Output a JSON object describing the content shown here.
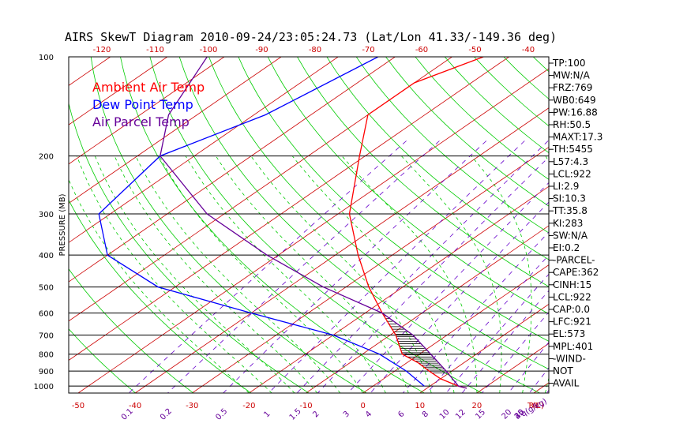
{
  "chart_data": {
    "type": "line",
    "title": "AIRS SkewT Diagram 2010-09-24/23:05:24.73 (Lat/Lon 41.33/-149.36 deg)",
    "ylabel": "PRESSURE (MB)",
    "y_scale": "log",
    "ylim": [
      1050,
      100
    ],
    "y_ticks": [
      100,
      200,
      300,
      400,
      500,
      600,
      700,
      800,
      900,
      1000
    ],
    "x_bottom_ticks": [
      -50,
      -40,
      -30,
      -20,
      -10,
      0,
      10,
      20,
      30
    ],
    "x_bottom_unit": "T(C)",
    "x_top_ticks": [
      -120,
      -110,
      -100,
      -90,
      -80,
      -70,
      -60,
      -50,
      -40
    ],
    "mixing_ratio_ticks": [
      "0.1",
      "0.2",
      "0.5",
      "1",
      "1.5",
      "2",
      "3",
      "4",
      "6",
      "8",
      "10",
      "12",
      "15",
      "20",
      "25",
      "30",
      "40"
    ],
    "mixing_ratio_unit": "q(g/kg)",
    "legend": [
      "Ambient Air Temp",
      "Dew Point Temp",
      "Air Parcel Temp"
    ],
    "series": [
      {
        "name": "Ambient Air Temp",
        "color": "#ff0000",
        "points": [
          [
            100,
            -64.5
          ],
          [
            120,
            -70
          ],
          [
            150,
            -70
          ],
          [
            200,
            -61
          ],
          [
            300,
            -48
          ],
          [
            400,
            -36
          ],
          [
            500,
            -26
          ],
          [
            600,
            -17
          ],
          [
            700,
            -9
          ],
          [
            800,
            -3
          ],
          [
            850,
            2
          ],
          [
            900,
            6
          ],
          [
            950,
            10
          ],
          [
            1000,
            15
          ],
          [
            1015,
            17
          ]
        ]
      },
      {
        "name": "Dew Point Temp",
        "color": "#0000ff",
        "points": [
          [
            100,
            -83
          ],
          [
            150,
            -88
          ],
          [
            200,
            -96
          ],
          [
            300,
            -92
          ],
          [
            400,
            -80
          ],
          [
            500,
            -63
          ],
          [
            600,
            -40
          ],
          [
            700,
            -20
          ],
          [
            800,
            -7
          ],
          [
            900,
            2
          ],
          [
            1000,
            9
          ]
        ]
      },
      {
        "name": "Air Parcel Temp",
        "color": "#660099",
        "points": [
          [
            100,
            -113
          ],
          [
            150,
            -105
          ],
          [
            200,
            -96
          ],
          [
            300,
            -73
          ],
          [
            400,
            -52
          ],
          [
            500,
            -34
          ],
          [
            600,
            -17
          ],
          [
            700,
            -6
          ],
          [
            800,
            2
          ],
          [
            900,
            9
          ],
          [
            1000,
            15
          ],
          [
            1015,
            17
          ]
        ]
      }
    ],
    "indices": [
      "TP:100",
      "MW:N/A",
      "FRZ:769",
      "WB0:649",
      "PW:16.88",
      "RH:50.5",
      "MAXT:17.3",
      "TH:5455",
      "L57:4.3",
      "LCL:922",
      "LI:2.9",
      "SI:10.3",
      "TT:35.8",
      "KI:283",
      "SW:N/A",
      "EI:0.2",
      "-PARCEL-",
      "CAPE:362",
      "CINH:15",
      "LCL:922",
      "CAP:0.0",
      "LFC:921",
      "EL:573",
      "MPL:401",
      "-WIND-",
      "NOT",
      "AVAIL"
    ],
    "colors": {
      "isotherm": "#cc0000",
      "dry_adiabat": "#00cc00",
      "moist_adiabat": "#00cc00",
      "mixing_ratio": "#6600cc",
      "isobar": "#000000",
      "top_axis": "#cc0000",
      "bottom_axis": "#cc0000",
      "mixing_axis": "#660099",
      "left_axis": "#000000"
    }
  }
}
